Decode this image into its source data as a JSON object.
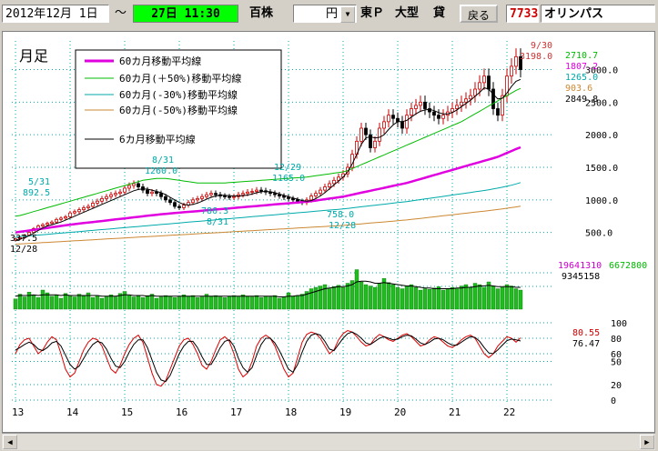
{
  "toolbar": {
    "date_from": "2012年12月 1日",
    "tilde": "～",
    "date_to": "27日 11:30",
    "unit": "百株",
    "currency": "円",
    "market": "東Ｐ",
    "size": "大型",
    "credit": "貸",
    "back_label": "戻る",
    "code": "7733",
    "name": "オリンパス"
  },
  "chart": {
    "period_label": "月足",
    "legend": [
      {
        "label": "60カ月移動平均線",
        "color": "#e000e0"
      },
      {
        "label": "60カ月(＋50%)移動平均線",
        "color": "#00bb00"
      },
      {
        "label": "60カ月(-30%)移動平均線",
        "color": "#00aaaa"
      },
      {
        "label": "60カ月(-50%)移動平均線",
        "color": "#cc8833"
      },
      {
        "label": "6カ月移動平均線",
        "color": "#000000"
      }
    ],
    "annotations": [
      {
        "text": "5/31",
        "sub": "892.5",
        "color": "#00aaaa"
      },
      {
        "text": "8/31",
        "sub": "1260.0",
        "color": "#00aaaa"
      },
      {
        "text": "12/29",
        "sub": "1165.0",
        "color": "#00aaaa"
      },
      {
        "text": "786.3",
        "sub": "8/31",
        "color": "#00aaaa"
      },
      {
        "text": "758.0",
        "sub": "12/28",
        "color": "#00aaaa"
      },
      {
        "text": "337.5",
        "sub": "12/28",
        "color": "#000000"
      },
      {
        "text": "9/30",
        "sub": "3198.0",
        "color": "#cc3333"
      }
    ],
    "right_values": {
      "plus50": "2710.7",
      "ma60": "1807.2",
      "minus30": "1265.0",
      "minus50": "903.6",
      "ma6": "2849.8",
      "vol_last": "19641310",
      "vol_max": "6672800",
      "vol_ma": "9345158",
      "osc_red": "80.55",
      "osc_black": "76.47"
    }
  },
  "chart_data": {
    "type": "line",
    "x_tick_labels": [
      "13",
      "14",
      "15",
      "16",
      "17",
      "18",
      "19",
      "20",
      "21",
      "22"
    ],
    "price_axis": {
      "ticks": [
        "3000.0",
        "2500.0",
        "2000.0",
        "1500.0",
        "1000.0",
        "500.0"
      ],
      "ylim": [
        300,
        3300
      ]
    },
    "volume_axis": {
      "ylim": [
        0,
        6672800
      ]
    },
    "oscillator_axis": {
      "ticks": [
        "100",
        "80",
        "60",
        "50",
        "20",
        "0"
      ],
      "ylim": [
        0,
        100
      ]
    },
    "months_per_year": 12,
    "price": [
      400,
      420,
      460,
      500,
      560,
      600,
      620,
      640,
      660,
      700,
      720,
      740,
      800,
      820,
      850,
      880,
      900,
      950,
      980,
      1020,
      1050,
      1080,
      1100,
      1120,
      1180,
      1220,
      1250,
      1200,
      1150,
      1100,
      1120,
      1100,
      1050,
      1000,
      960,
      900,
      880,
      920,
      960,
      1000,
      1020,
      1050,
      1080,
      1100,
      1080,
      1060,
      1050,
      1040,
      1050,
      1080,
      1100,
      1120,
      1130,
      1150,
      1140,
      1120,
      1100,
      1080,
      1060,
      1040,
      1020,
      1000,
      980,
      960,
      1000,
      1060,
      1100,
      1150,
      1200,
      1250,
      1300,
      1350,
      1400,
      1500,
      1700,
      1900,
      2100,
      2000,
      1800,
      1900,
      2100,
      2200,
      2300,
      2250,
      2200,
      2100,
      2300,
      2400,
      2450,
      2500,
      2400,
      2350,
      2300,
      2250,
      2300,
      2350,
      2400,
      2450,
      2500,
      2550,
      2600,
      2700,
      2800,
      2900,
      2700,
      2400,
      2300,
      2600,
      2900,
      3050,
      3198,
      3000
    ],
    "series": [
      {
        "name": "60カ月移動平均線",
        "values": [
          500,
          510,
          520,
          530,
          540,
          550,
          560,
          570,
          580,
          590,
          600,
          610,
          620,
          628,
          636,
          644,
          652,
          660,
          668,
          676,
          684,
          692,
          700,
          708,
          716,
          724,
          732,
          740,
          748,
          756,
          764,
          772,
          780,
          786,
          792,
          798,
          804,
          810,
          816,
          822,
          828,
          834,
          840,
          846,
          852,
          858,
          864,
          870,
          876,
          882,
          888,
          894,
          900,
          906,
          912,
          918,
          924,
          930,
          936,
          942,
          948,
          954,
          960,
          966,
          972,
          980,
          990,
          1000,
          1010,
          1020,
          1030,
          1040,
          1050,
          1065,
          1080,
          1095,
          1110,
          1125,
          1140,
          1155,
          1170,
          1185,
          1200,
          1215,
          1230,
          1245,
          1260,
          1280,
          1300,
          1320,
          1340,
          1360,
          1380,
          1400,
          1420,
          1440,
          1460,
          1480,
          1500,
          1520,
          1540,
          1560,
          1580,
          1600,
          1620,
          1640,
          1660,
          1690,
          1720,
          1750,
          1780,
          1807
        ]
      },
      {
        "name": "60カ月(＋50%)移動平均線",
        "values": [
          750,
          760,
          780,
          800,
          820,
          840,
          860,
          880,
          900,
          920,
          940,
          960,
          980,
          1000,
          1020,
          1040,
          1060,
          1080,
          1100,
          1120,
          1140,
          1160,
          1180,
          1200,
          1220,
          1240,
          1260,
          1280,
          1300,
          1310,
          1320,
          1330,
          1330,
          1330,
          1320,
          1310,
          1300,
          1290,
          1280,
          1270,
          1260,
          1260,
          1260,
          1260,
          1260,
          1260,
          1260,
          1265,
          1270,
          1275,
          1280,
          1285,
          1290,
          1295,
          1300,
          1305,
          1310,
          1315,
          1320,
          1325,
          1330,
          1335,
          1340,
          1345,
          1350,
          1360,
          1370,
          1380,
          1390,
          1400,
          1410,
          1420,
          1430,
          1450,
          1480,
          1510,
          1540,
          1570,
          1600,
          1630,
          1660,
          1690,
          1720,
          1750,
          1780,
          1810,
          1840,
          1870,
          1900,
          1930,
          1960,
          1990,
          2020,
          2050,
          2080,
          2110,
          2140,
          2170,
          2200,
          2240,
          2280,
          2320,
          2360,
          2400,
          2440,
          2480,
          2520,
          2560,
          2600,
          2640,
          2680,
          2711
        ]
      },
      {
        "name": "60カ月(-30%)移動平均線",
        "values": [
          430,
          436,
          442,
          448,
          454,
          460,
          466,
          472,
          478,
          484,
          490,
          496,
          502,
          508,
          514,
          520,
          526,
          532,
          538,
          544,
          550,
          556,
          562,
          568,
          574,
          580,
          586,
          592,
          598,
          604,
          610,
          616,
          622,
          628,
          634,
          640,
          646,
          652,
          658,
          664,
          670,
          676,
          682,
          688,
          694,
          700,
          706,
          712,
          718,
          724,
          730,
          736,
          742,
          748,
          754,
          760,
          766,
          772,
          778,
          784,
          790,
          796,
          802,
          808,
          814,
          820,
          826,
          832,
          838,
          844,
          850,
          856,
          862,
          870,
          878,
          886,
          894,
          902,
          910,
          918,
          926,
          934,
          942,
          950,
          958,
          966,
          974,
          984,
          994,
          1004,
          1014,
          1024,
          1034,
          1044,
          1054,
          1064,
          1074,
          1084,
          1094,
          1104,
          1114,
          1124,
          1134,
          1144,
          1156,
          1168,
          1180,
          1195,
          1210,
          1225,
          1245,
          1265
        ]
      },
      {
        "name": "60カ月(-50%)移動平均線",
        "values": [
          320,
          324,
          328,
          332,
          336,
          340,
          344,
          348,
          352,
          356,
          360,
          364,
          368,
          372,
          376,
          380,
          384,
          388,
          392,
          396,
          400,
          404,
          408,
          412,
          416,
          420,
          424,
          428,
          432,
          436,
          440,
          444,
          448,
          452,
          456,
          460,
          464,
          468,
          472,
          476,
          480,
          484,
          488,
          492,
          496,
          500,
          504,
          508,
          512,
          516,
          520,
          524,
          528,
          532,
          536,
          540,
          544,
          548,
          552,
          556,
          560,
          564,
          568,
          572,
          576,
          580,
          584,
          588,
          592,
          596,
          600,
          604,
          608,
          614,
          620,
          626,
          632,
          638,
          644,
          650,
          656,
          662,
          668,
          674,
          680,
          686,
          692,
          700,
          708,
          716,
          724,
          732,
          740,
          748,
          756,
          764,
          772,
          780,
          788,
          796,
          804,
          812,
          820,
          828,
          836,
          844,
          852,
          862,
          872,
          882,
          892,
          904
        ]
      },
      {
        "name": "6カ月移動平均線",
        "values": [
          380,
          400,
          420,
          450,
          490,
          530,
          570,
          600,
          620,
          640,
          660,
          690,
          720,
          750,
          780,
          810,
          840,
          870,
          900,
          930,
          960,
          990,
          1020,
          1050,
          1080,
          1110,
          1140,
          1160,
          1170,
          1165,
          1150,
          1130,
          1110,
          1080,
          1040,
          1000,
          960,
          930,
          920,
          930,
          950,
          980,
          1010,
          1040,
          1060,
          1070,
          1070,
          1065,
          1060,
          1060,
          1065,
          1075,
          1090,
          1110,
          1125,
          1130,
          1125,
          1110,
          1090,
          1070,
          1050,
          1030,
          1010,
          990,
          980,
          990,
          1020,
          1060,
          1110,
          1170,
          1230,
          1290,
          1350,
          1430,
          1550,
          1700,
          1850,
          1950,
          1970,
          1950,
          1960,
          2000,
          2080,
          2150,
          2200,
          2200,
          2220,
          2270,
          2320,
          2360,
          2380,
          2390,
          2370,
          2340,
          2320,
          2320,
          2340,
          2380,
          2430,
          2480,
          2530,
          2590,
          2650,
          2720,
          2700,
          2620,
          2550,
          2560,
          2640,
          2740,
          2820,
          2850
        ]
      }
    ],
    "volume": [
      1.5,
      2.2,
      1.8,
      2.5,
      2.0,
      1.7,
      2.8,
      2.4,
      1.9,
      2.1,
      1.6,
      2.3,
      2.0,
      1.8,
      2.2,
      1.9,
      2.4,
      1.7,
      2.0,
      1.6,
      1.9,
      2.1,
      1.8,
      2.3,
      2.6,
      2.0,
      1.8,
      1.9,
      1.7,
      2.0,
      2.2,
      1.6,
      1.8,
      2.0,
      1.9,
      1.7,
      1.8,
      2.1,
      1.9,
      2.0,
      1.7,
      1.8,
      2.2,
      1.9,
      2.0,
      1.8,
      1.7,
      1.9,
      2.0,
      1.8,
      2.1,
      1.9,
      1.8,
      2.0,
      1.7,
      1.9,
      1.8,
      2.0,
      1.6,
      1.8,
      2.4,
      1.9,
      2.0,
      2.2,
      2.6,
      3.0,
      3.2,
      3.4,
      3.6,
      3.0,
      3.3,
      3.5,
      3.2,
      3.8,
      4.2,
      5.8,
      4.0,
      3.6,
      3.4,
      3.2,
      3.8,
      4.5,
      3.9,
      3.6,
      3.2,
      3.0,
      3.4,
      3.6,
      3.2,
      2.8,
      3.0,
      2.9,
      3.1,
      3.3,
      2.8,
      3.0,
      3.2,
      3.0,
      3.4,
      3.6,
      3.2,
      3.8,
      3.6,
      3.2,
      4.0,
      3.4,
      3.0,
      3.2,
      3.6,
      3.4,
      3.0,
      2.8
    ],
    "volume_ma": [
      1.9,
      2.0,
      2.0,
      2.0,
      2.1,
      2.0,
      2.1,
      2.1,
      2.1,
      2.1,
      2.0,
      2.1,
      2.0,
      2.0,
      2.0,
      2.0,
      2.0,
      2.0,
      2.0,
      1.9,
      1.9,
      1.9,
      1.9,
      2.0,
      2.1,
      2.1,
      2.0,
      2.0,
      2.0,
      1.9,
      2.0,
      1.9,
      1.9,
      1.9,
      1.9,
      1.9,
      1.9,
      1.9,
      1.9,
      1.9,
      1.9,
      1.9,
      1.9,
      1.9,
      1.9,
      1.9,
      1.9,
      1.9,
      1.9,
      1.9,
      1.9,
      1.9,
      1.9,
      1.9,
      1.9,
      1.9,
      1.9,
      1.9,
      1.8,
      1.8,
      1.9,
      1.9,
      2.0,
      2.0,
      2.2,
      2.4,
      2.6,
      2.8,
      3.0,
      3.1,
      3.2,
      3.3,
      3.3,
      3.4,
      3.6,
      4.0,
      4.1,
      4.1,
      4.0,
      3.8,
      3.8,
      3.9,
      3.8,
      3.7,
      3.6,
      3.5,
      3.4,
      3.4,
      3.3,
      3.2,
      3.1,
      3.1,
      3.0,
      3.0,
      3.0,
      3.0,
      3.0,
      3.1,
      3.1,
      3.2,
      3.2,
      3.3,
      3.4,
      3.4,
      3.5,
      3.4,
      3.3,
      3.3,
      3.3,
      3.3,
      3.2,
      3.2
    ],
    "osc_red": [
      60,
      72,
      78,
      80,
      70,
      60,
      65,
      75,
      82,
      78,
      60,
      40,
      30,
      35,
      50,
      65,
      75,
      80,
      78,
      70,
      55,
      40,
      35,
      45,
      60,
      72,
      80,
      84,
      75,
      55,
      35,
      20,
      18,
      25,
      40,
      55,
      70,
      78,
      80,
      72,
      60,
      45,
      40,
      50,
      65,
      78,
      82,
      76,
      60,
      40,
      30,
      35,
      50,
      70,
      80,
      84,
      80,
      70,
      55,
      40,
      30,
      35,
      55,
      75,
      85,
      88,
      86,
      80,
      70,
      60,
      65,
      78,
      86,
      90,
      88,
      82,
      75,
      70,
      72,
      80,
      85,
      82,
      78,
      76,
      80,
      84,
      86,
      82,
      76,
      70,
      72,
      78,
      82,
      80,
      75,
      70,
      68,
      72,
      78,
      82,
      84,
      80,
      70,
      60,
      55,
      60,
      70,
      76,
      82,
      80,
      75,
      80.55
    ],
    "osc_black": [
      65,
      68,
      72,
      75,
      72,
      66,
      64,
      68,
      74,
      76,
      70,
      58,
      46,
      40,
      44,
      54,
      64,
      72,
      76,
      74,
      66,
      54,
      44,
      42,
      50,
      62,
      72,
      78,
      78,
      68,
      52,
      36,
      26,
      24,
      32,
      46,
      60,
      70,
      76,
      76,
      68,
      56,
      46,
      46,
      56,
      68,
      76,
      78,
      70,
      54,
      42,
      36,
      42,
      58,
      72,
      80,
      80,
      74,
      64,
      52,
      40,
      36,
      46,
      62,
      76,
      84,
      86,
      84,
      76,
      66,
      64,
      72,
      80,
      86,
      88,
      85,
      80,
      74,
      72,
      76,
      80,
      82,
      80,
      78,
      79,
      82,
      84,
      83,
      79,
      74,
      72,
      75,
      79,
      80,
      78,
      74,
      71,
      71,
      75,
      79,
      82,
      81,
      76,
      68,
      61,
      60,
      65,
      71,
      77,
      79,
      78,
      76.47
    ]
  }
}
